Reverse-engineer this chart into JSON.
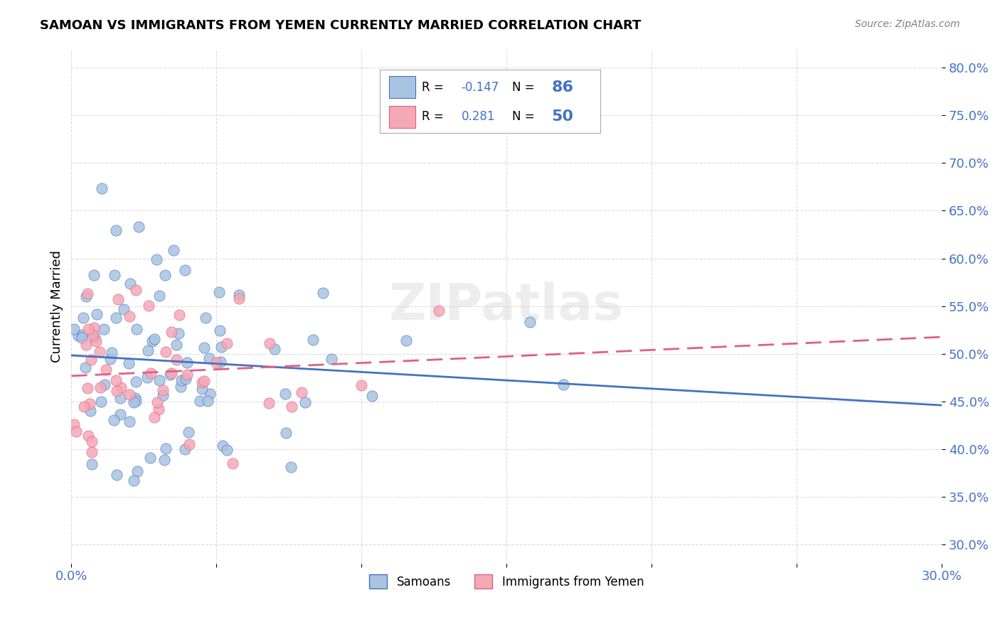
{
  "title": "SAMOAN VS IMMIGRANTS FROM YEMEN CURRENTLY MARRIED CORRELATION CHART",
  "source": "Source: ZipAtlas.com",
  "ylabel": "Currently Married",
  "xlim": [
    0.0,
    0.3
  ],
  "ylim": [
    0.28,
    0.82
  ],
  "x_tick_vals": [
    0.0,
    0.05,
    0.1,
    0.15,
    0.2,
    0.25,
    0.3
  ],
  "x_tick_labels": [
    "0.0%",
    "",
    "",
    "",
    "",
    "",
    "30.0%"
  ],
  "y_tick_vals": [
    0.3,
    0.35,
    0.4,
    0.45,
    0.5,
    0.55,
    0.6,
    0.65,
    0.7,
    0.75,
    0.8
  ],
  "y_tick_labels": [
    "30.0%",
    "35.0%",
    "40.0%",
    "45.0%",
    "50.0%",
    "55.0%",
    "60.0%",
    "65.0%",
    "70.0%",
    "75.0%",
    "80.0%"
  ],
  "legend_label1": "Samoans",
  "legend_label2": "Immigrants from Yemen",
  "r1": "-0.147",
  "n1": "86",
  "r2": "0.281",
  "n2": "50",
  "color_samoan": "#a8c4e0",
  "color_yemen": "#f4a8b8",
  "line_color_samoan": "#4472c4",
  "line_color_yemen": "#e06080",
  "watermark": "ZIPatlas",
  "title_fontsize": 13,
  "tick_fontsize": 13,
  "legend_fontsize": 12,
  "legend_n_fontsize": 16
}
